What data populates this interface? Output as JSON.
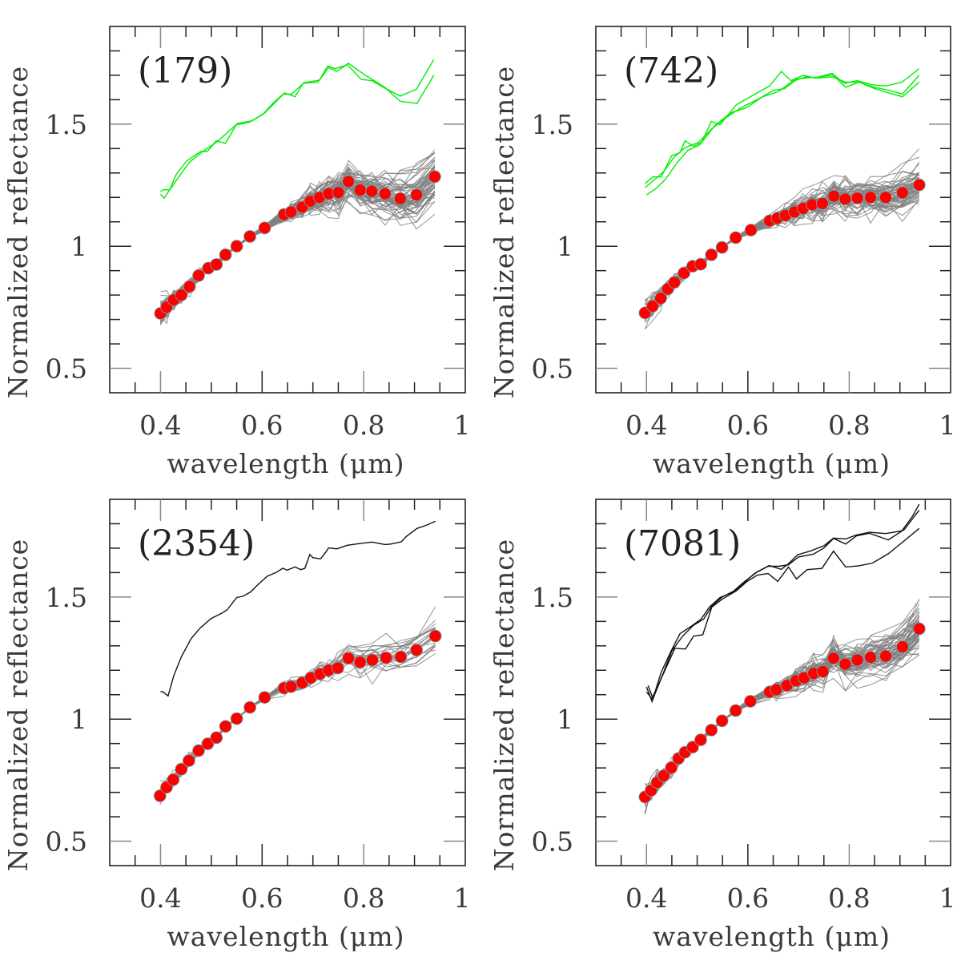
{
  "figure": {
    "layout": "2x2 grid of panels",
    "colors": {
      "axis": "#222222",
      "minor_tick": "#888888",
      "mean_points": "#ff0000",
      "mean_point_outline": "#5fb0b0",
      "ensemble_lines": "#808080",
      "green_spectra": "#00ee00",
      "black_spectra": "#111111"
    }
  },
  "chart_data": [
    {
      "type": "line",
      "panel": "top-left",
      "title": "(179)",
      "xlabel": "wavelength (μm)",
      "ylabel": "Normalized reflectance",
      "xlim": [
        0.3,
        1.0
      ],
      "ylim": [
        0.4,
        1.9
      ],
      "xticks": [
        0.4,
        0.6,
        0.8,
        1.0
      ],
      "xtick_labels": [
        "0.4",
        "0.6",
        "0.8",
        "1"
      ],
      "yticks": [
        0.5,
        1.0,
        1.5
      ],
      "ytick_labels": [
        "0.5",
        "1",
        "1.5"
      ],
      "x_minor_step": 0.05,
      "y_minor_step": 0.1,
      "grid": false,
      "mean_points": {
        "name": "mean (red dots)",
        "x": [
          0.4,
          0.412,
          0.426,
          0.441,
          0.457,
          0.475,
          0.494,
          0.51,
          0.528,
          0.55,
          0.576,
          0.605,
          0.643,
          0.657,
          0.679,
          0.695,
          0.713,
          0.731,
          0.75,
          0.77,
          0.793,
          0.816,
          0.842,
          0.872,
          0.904,
          0.94
        ],
        "y": [
          0.725,
          0.75,
          0.78,
          0.8,
          0.835,
          0.88,
          0.91,
          0.925,
          0.965,
          1.0,
          1.04,
          1.075,
          1.13,
          1.14,
          1.16,
          1.185,
          1.2,
          1.215,
          1.22,
          1.265,
          1.23,
          1.225,
          1.215,
          1.195,
          1.21,
          1.285
        ]
      },
      "ensemble": {
        "name": "individual spectra (gray)",
        "count": 60,
        "spread": 0.045
      },
      "reference_spectra": {
        "color_key": "green_spectra",
        "series": [
          {
            "name": "reference 1",
            "x": [
              0.4,
              0.407,
              0.418,
              0.431,
              0.452,
              0.479,
              0.492,
              0.51,
              0.528,
              0.549,
              0.575,
              0.602,
              0.621,
              0.644,
              0.665,
              0.681,
              0.713,
              0.729,
              0.744,
              0.768,
              0.795,
              0.816,
              0.842,
              0.872,
              0.904,
              0.938
            ],
            "y": [
              1.224,
              1.232,
              1.23,
              1.295,
              1.35,
              1.388,
              1.388,
              1.432,
              1.421,
              1.497,
              1.508,
              1.541,
              1.585,
              1.628,
              1.612,
              1.669,
              1.68,
              1.738,
              1.727,
              1.743,
              1.683,
              1.678,
              1.647,
              1.615,
              1.643,
              1.765
            ]
          },
          {
            "name": "reference 2",
            "x": [
              0.4,
              0.407,
              0.418,
              0.436,
              0.457,
              0.483,
              0.51,
              0.531,
              0.552,
              0.581,
              0.605,
              0.642,
              0.658,
              0.681,
              0.71,
              0.731,
              0.747,
              0.77,
              0.8,
              0.842,
              0.872,
              0.905,
              0.938
            ],
            "y": [
              1.213,
              1.197,
              1.23,
              1.284,
              1.344,
              1.388,
              1.426,
              1.464,
              1.503,
              1.514,
              1.546,
              1.623,
              1.623,
              1.667,
              1.672,
              1.732,
              1.716,
              1.749,
              1.705,
              1.65,
              1.593,
              1.585,
              1.7
            ]
          }
        ]
      }
    },
    {
      "type": "line",
      "panel": "top-right",
      "title": "(742)",
      "xlabel": "wavelength (μm)",
      "ylabel": "Normalized reflectance",
      "xlim": [
        0.3,
        1.0
      ],
      "ylim": [
        0.4,
        1.9
      ],
      "xticks": [
        0.4,
        0.6,
        0.8,
        1.0
      ],
      "xtick_labels": [
        "0.4",
        "0.6",
        "0.8",
        "1"
      ],
      "yticks": [
        0.5,
        1.0,
        1.5
      ],
      "ytick_labels": [
        "0.5",
        "1",
        "1.5"
      ],
      "x_minor_step": 0.05,
      "y_minor_step": 0.1,
      "grid": false,
      "mean_points": {
        "name": "mean (red dots)",
        "x": [
          0.397,
          0.412,
          0.428,
          0.442,
          0.455,
          0.474,
          0.491,
          0.507,
          0.528,
          0.549,
          0.576,
          0.606,
          0.643,
          0.658,
          0.674,
          0.692,
          0.709,
          0.727,
          0.747,
          0.77,
          0.792,
          0.816,
          0.842,
          0.872,
          0.905,
          0.938
        ],
        "y": [
          0.727,
          0.754,
          0.787,
          0.825,
          0.852,
          0.89,
          0.918,
          0.926,
          0.965,
          0.995,
          1.035,
          1.066,
          1.104,
          1.115,
          1.126,
          1.14,
          1.155,
          1.17,
          1.175,
          1.205,
          1.193,
          1.197,
          1.2,
          1.2,
          1.219,
          1.251
        ]
      },
      "ensemble": {
        "name": "individual spectra (gray)",
        "count": 60,
        "spread": 0.04
      },
      "reference_spectra": {
        "color_key": "green_spectra",
        "series": [
          {
            "name": "reference 1",
            "x": [
              0.397,
              0.413,
              0.429,
              0.45,
              0.466,
              0.476,
              0.493,
              0.509,
              0.528,
              0.545,
              0.577,
              0.614,
              0.643,
              0.666,
              0.685,
              0.709,
              0.732,
              0.766,
              0.79,
              0.816,
              0.845,
              0.872,
              0.904,
              0.938
            ],
            "y": [
              1.257,
              1.284,
              1.284,
              1.372,
              1.383,
              1.432,
              1.41,
              1.426,
              1.511,
              1.497,
              1.579,
              1.623,
              1.656,
              1.716,
              1.678,
              1.7,
              1.689,
              1.708,
              1.667,
              1.678,
              1.661,
              1.656,
              1.672,
              1.727
            ]
          },
          {
            "name": "reference 2",
            "x": [
              0.397,
              0.416,
              0.434,
              0.455,
              0.476,
              0.503,
              0.529,
              0.556,
              0.587,
              0.619,
              0.651,
              0.672,
              0.693,
              0.714,
              0.74,
              0.767,
              0.793,
              0.819,
              0.851,
              0.878,
              0.905,
              0.938
            ],
            "y": [
              1.24,
              1.273,
              1.306,
              1.366,
              1.404,
              1.426,
              1.481,
              1.525,
              1.568,
              1.601,
              1.639,
              1.645,
              1.678,
              1.694,
              1.689,
              1.694,
              1.672,
              1.672,
              1.65,
              1.639,
              1.623,
              1.7
            ]
          },
          {
            "name": "reference 3",
            "x": [
              0.4,
              0.418,
              0.437,
              0.461,
              0.482,
              0.505,
              0.534,
              0.566,
              0.598,
              0.629,
              0.661,
              0.693,
              0.714,
              0.746,
              0.767,
              0.793,
              0.819,
              0.851,
              0.878,
              0.905,
              0.938
            ],
            "y": [
              1.21,
              1.235,
              1.273,
              1.344,
              1.393,
              1.415,
              1.492,
              1.546,
              1.568,
              1.612,
              1.634,
              1.683,
              1.689,
              1.694,
              1.702,
              1.651,
              1.672,
              1.645,
              1.628,
              1.612,
              1.672
            ]
          }
        ]
      }
    },
    {
      "type": "line",
      "panel": "bottom-left",
      "title": "(2354)",
      "xlabel": "wavelength (μm)",
      "ylabel": "Normalized reflectance",
      "xlim": [
        0.3,
        1.0
      ],
      "ylim": [
        0.4,
        1.9
      ],
      "xticks": [
        0.4,
        0.6,
        0.8,
        1.0
      ],
      "xtick_labels": [
        "0.4",
        "0.6",
        "0.8",
        "1"
      ],
      "yticks": [
        0.5,
        1.0,
        1.5
      ],
      "ytick_labels": [
        "0.5",
        "1",
        "1.5"
      ],
      "x_minor_step": 0.05,
      "y_minor_step": 0.1,
      "grid": false,
      "mean_points": {
        "name": "mean (red dots)",
        "x": [
          0.399,
          0.412,
          0.425,
          0.441,
          0.456,
          0.475,
          0.493,
          0.51,
          0.528,
          0.55,
          0.576,
          0.605,
          0.643,
          0.657,
          0.679,
          0.696,
          0.714,
          0.731,
          0.749,
          0.77,
          0.793,
          0.817,
          0.844,
          0.873,
          0.904,
          0.941
        ],
        "y": [
          0.686,
          0.721,
          0.752,
          0.795,
          0.83,
          0.871,
          0.899,
          0.924,
          0.97,
          1.002,
          1.048,
          1.089,
          1.127,
          1.133,
          1.149,
          1.169,
          1.185,
          1.2,
          1.209,
          1.249,
          1.233,
          1.242,
          1.251,
          1.255,
          1.283,
          1.34
        ]
      },
      "ensemble": {
        "name": "individual spectra (gray)",
        "count": 22,
        "spread": 0.035
      },
      "reference_spectra": {
        "color_key": "black_spectra",
        "series": [
          {
            "name": "reference 1",
            "x": [
              0.4,
              0.405,
              0.415,
              0.426,
              0.441,
              0.46,
              0.478,
              0.499,
              0.52,
              0.531,
              0.55,
              0.562,
              0.577,
              0.591,
              0.61,
              0.628,
              0.641,
              0.649,
              0.665,
              0.676,
              0.684,
              0.694,
              0.7,
              0.715,
              0.723,
              0.731,
              0.747,
              0.768,
              0.789,
              0.816,
              0.842,
              0.853,
              0.874,
              0.884,
              0.905,
              0.921,
              0.941
            ],
            "y": [
              1.114,
              1.111,
              1.095,
              1.177,
              1.255,
              1.329,
              1.373,
              1.411,
              1.433,
              1.447,
              1.498,
              1.503,
              1.52,
              1.549,
              1.585,
              1.601,
              1.618,
              1.61,
              1.623,
              1.612,
              1.617,
              1.674,
              1.661,
              1.656,
              1.677,
              1.701,
              1.697,
              1.712,
              1.718,
              1.725,
              1.715,
              1.717,
              1.726,
              1.748,
              1.781,
              1.792,
              1.81
            ]
          }
        ]
      }
    },
    {
      "type": "line",
      "panel": "bottom-right",
      "title": "(7081)",
      "xlabel": "wavelength (μm)",
      "ylabel": "Normalized reflectance",
      "xlim": [
        0.3,
        1.0
      ],
      "ylim": [
        0.4,
        1.9
      ],
      "xticks": [
        0.4,
        0.6,
        0.8,
        1.0
      ],
      "xtick_labels": [
        "0.4",
        "0.6",
        "0.8",
        "1"
      ],
      "yticks": [
        0.5,
        1.0,
        1.5
      ],
      "ytick_labels": [
        "0.5",
        "1",
        "1.5"
      ],
      "x_minor_step": 0.05,
      "y_minor_step": 0.1,
      "grid": false,
      "mean_points": {
        "name": "mean (red dots)",
        "x": [
          0.397,
          0.409,
          0.421,
          0.434,
          0.449,
          0.463,
          0.476,
          0.491,
          0.507,
          0.528,
          0.549,
          0.576,
          0.605,
          0.643,
          0.656,
          0.677,
          0.695,
          0.711,
          0.73,
          0.748,
          0.769,
          0.792,
          0.816,
          0.842,
          0.872,
          0.905,
          0.938
        ],
        "y": [
          0.681,
          0.708,
          0.741,
          0.768,
          0.801,
          0.839,
          0.864,
          0.885,
          0.915,
          0.955,
          0.993,
          1.035,
          1.073,
          1.111,
          1.12,
          1.138,
          1.157,
          1.169,
          1.187,
          1.195,
          1.249,
          1.225,
          1.242,
          1.253,
          1.258,
          1.296,
          1.37
        ]
      },
      "ensemble": {
        "name": "individual spectra (gray)",
        "count": 60,
        "spread": 0.042
      },
      "reference_spectra": {
        "color_key": "black_spectra",
        "series": [
          {
            "name": "reference 1",
            "x": [
              0.4,
              0.411,
              0.429,
              0.45,
              0.466,
              0.487,
              0.508,
              0.524,
              0.545,
              0.571,
              0.592,
              0.613,
              0.642,
              0.666,
              0.682,
              0.698,
              0.724,
              0.751,
              0.769,
              0.793,
              0.814,
              0.84,
              0.872,
              0.904,
              0.925,
              0.938
            ],
            "y": [
              1.132,
              1.072,
              1.192,
              1.285,
              1.35,
              1.378,
              1.41,
              1.459,
              1.498,
              1.52,
              1.558,
              1.596,
              1.629,
              1.613,
              1.64,
              1.673,
              1.689,
              1.711,
              1.741,
              1.738,
              1.754,
              1.765,
              1.76,
              1.771,
              1.831,
              1.88
            ]
          },
          {
            "name": "reference 2",
            "x": [
              0.403,
              0.413,
              0.432,
              0.45,
              0.471,
              0.492,
              0.513,
              0.529,
              0.55,
              0.571,
              0.592,
              0.619,
              0.64,
              0.661,
              0.68,
              0.7,
              0.729,
              0.751,
              0.769,
              0.793,
              0.814,
              0.84,
              0.877,
              0.909,
              0.938
            ],
            "y": [
              1.138,
              1.084,
              1.182,
              1.279,
              1.339,
              1.383,
              1.41,
              1.463,
              1.501,
              1.523,
              1.561,
              1.604,
              1.626,
              1.626,
              1.632,
              1.664,
              1.675,
              1.702,
              1.74,
              1.717,
              1.75,
              1.761,
              1.734,
              1.777,
              1.856
            ]
          },
          {
            "name": "reference 3",
            "x": [
              0.4,
              0.411,
              0.437,
              0.456,
              0.477,
              0.493,
              0.511,
              0.529,
              0.55,
              0.577,
              0.598,
              0.619,
              0.64,
              0.659,
              0.68,
              0.696,
              0.717,
              0.746,
              0.769,
              0.793,
              0.819,
              0.846,
              0.877,
              0.909,
              0.938
            ],
            "y": [
              1.111,
              1.084,
              1.203,
              1.29,
              1.287,
              1.34,
              1.345,
              1.459,
              1.492,
              1.525,
              1.563,
              1.59,
              1.596,
              1.564,
              1.623,
              1.574,
              1.612,
              1.617,
              1.688,
              1.623,
              1.628,
              1.639,
              1.677,
              1.731,
              1.781
            ]
          }
        ]
      }
    }
  ]
}
